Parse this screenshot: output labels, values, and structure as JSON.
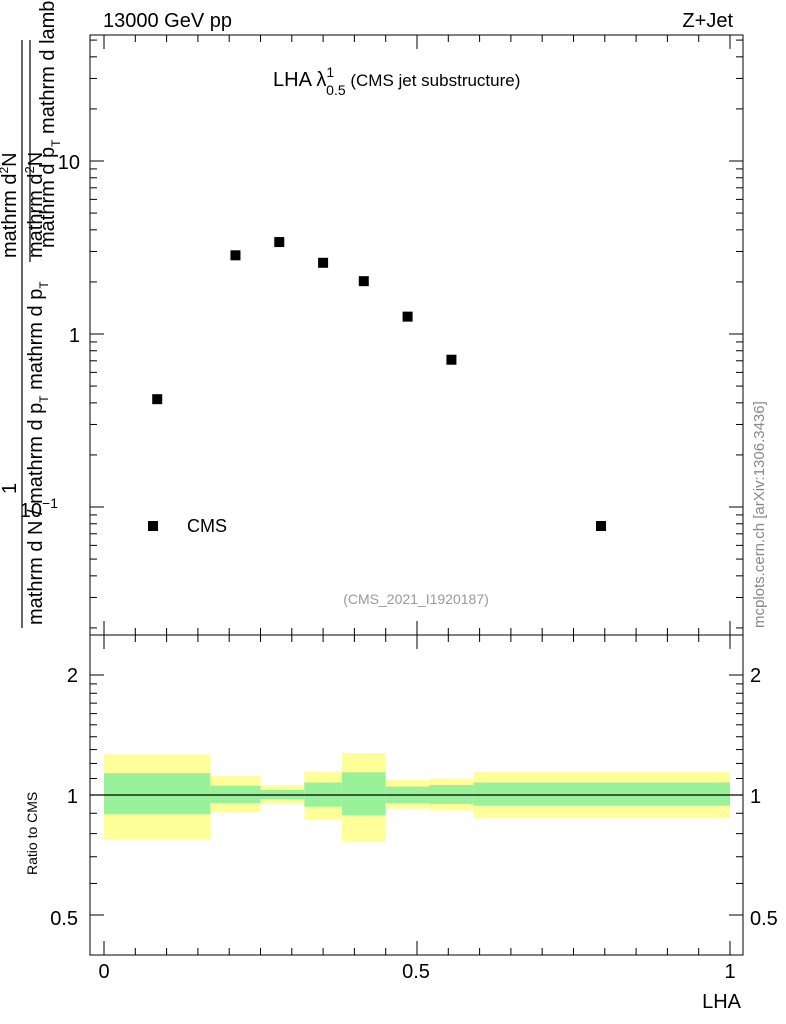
{
  "header": {
    "left": "13000 GeV pp",
    "right": "Z+Jet"
  },
  "main_plot": {
    "title_prefix": "LHA ",
    "title_lambda": "λ",
    "title_sup": "1",
    "title_sub": "0.5",
    "title_suffix": " (CMS jet substructure)",
    "analysis_id": "(CMS_2021_I1920187)",
    "ylabel_numerator_1": "mathrm d",
    "ylabel_numerator_2": "N",
    "ylabel_numerator_3": "mathrm d p",
    "ylabel_numerator_4": "mathrm d lambda",
    "ylabel_denominator_1": "mathrm d N / mathrm d p",
    "ylabel_denominator_2": "mathrm d p",
    "ylabel_one": "1",
    "ylabel_sub_T": "T",
    "ytick_labels": [
      "10",
      "1"
    ],
    "ytick_10m1_base": "10",
    "ytick_10m1_exp": "−1",
    "legend_label": "CMS"
  },
  "ratio_plot": {
    "ylabel": "Ratio to CMS",
    "ytick_labels": [
      "2",
      "1",
      "0.5"
    ]
  },
  "x_axis": {
    "label": "LHA",
    "tick_labels": [
      "0",
      "0.5",
      "1"
    ]
  },
  "side_label": "mcplots.cern.ch [arXiv:1306.3436]",
  "colors": {
    "band_outer": "#ffff99",
    "band_inner": "#99f299",
    "marker": "#000000",
    "side_label": "#888888",
    "analysis_id": "#999999"
  },
  "chart_data": [
    {
      "type": "scatter",
      "title": "LHA λ^1_0.5 (CMS jet substructure)",
      "xlabel": "LHA",
      "ylabel": "1/(dN/dpT) d²N/(dpT dλ)",
      "log_y": true,
      "xlim": [
        0,
        1
      ],
      "ylim": [
        0.02,
        60
      ],
      "series": [
        {
          "name": "CMS",
          "x": [
            0.085,
            0.21,
            0.28,
            0.35,
            0.415,
            0.485,
            0.555
          ],
          "y": [
            0.42,
            2.85,
            3.4,
            2.58,
            2.02,
            1.26,
            0.71
          ]
        }
      ],
      "legend": "bottom-left"
    },
    {
      "type": "area",
      "ylabel": "Ratio to CMS",
      "log_y": true,
      "xlim": [
        0,
        1
      ],
      "ylim": [
        0.42,
        2.3
      ],
      "bins": [
        {
          "x0": 0.0,
          "x1": 0.17,
          "inner": [
            0.895,
            1.135
          ],
          "outer": [
            0.775,
            1.265
          ]
        },
        {
          "x0": 0.17,
          "x1": 0.25,
          "inner": [
            0.955,
            1.055
          ],
          "outer": [
            0.905,
            1.115
          ]
        },
        {
          "x0": 0.25,
          "x1": 0.32,
          "inner": [
            0.975,
            1.03
          ],
          "outer": [
            0.95,
            1.06
          ]
        },
        {
          "x0": 0.32,
          "x1": 0.38,
          "inner": [
            0.935,
            1.075
          ],
          "outer": [
            0.87,
            1.145
          ]
        },
        {
          "x0": 0.38,
          "x1": 0.45,
          "inner": [
            0.89,
            1.14
          ],
          "outer": [
            0.765,
            1.275
          ]
        },
        {
          "x0": 0.45,
          "x1": 0.52,
          "inner": [
            0.955,
            1.05
          ],
          "outer": [
            0.925,
            1.09
          ]
        },
        {
          "x0": 0.52,
          "x1": 0.59,
          "inner": [
            0.95,
            1.06
          ],
          "outer": [
            0.915,
            1.1
          ]
        },
        {
          "x0": 0.59,
          "x1": 1.0,
          "inner": [
            0.94,
            1.075
          ],
          "outer": [
            0.875,
            1.145
          ]
        }
      ],
      "reference_line": 1
    }
  ]
}
